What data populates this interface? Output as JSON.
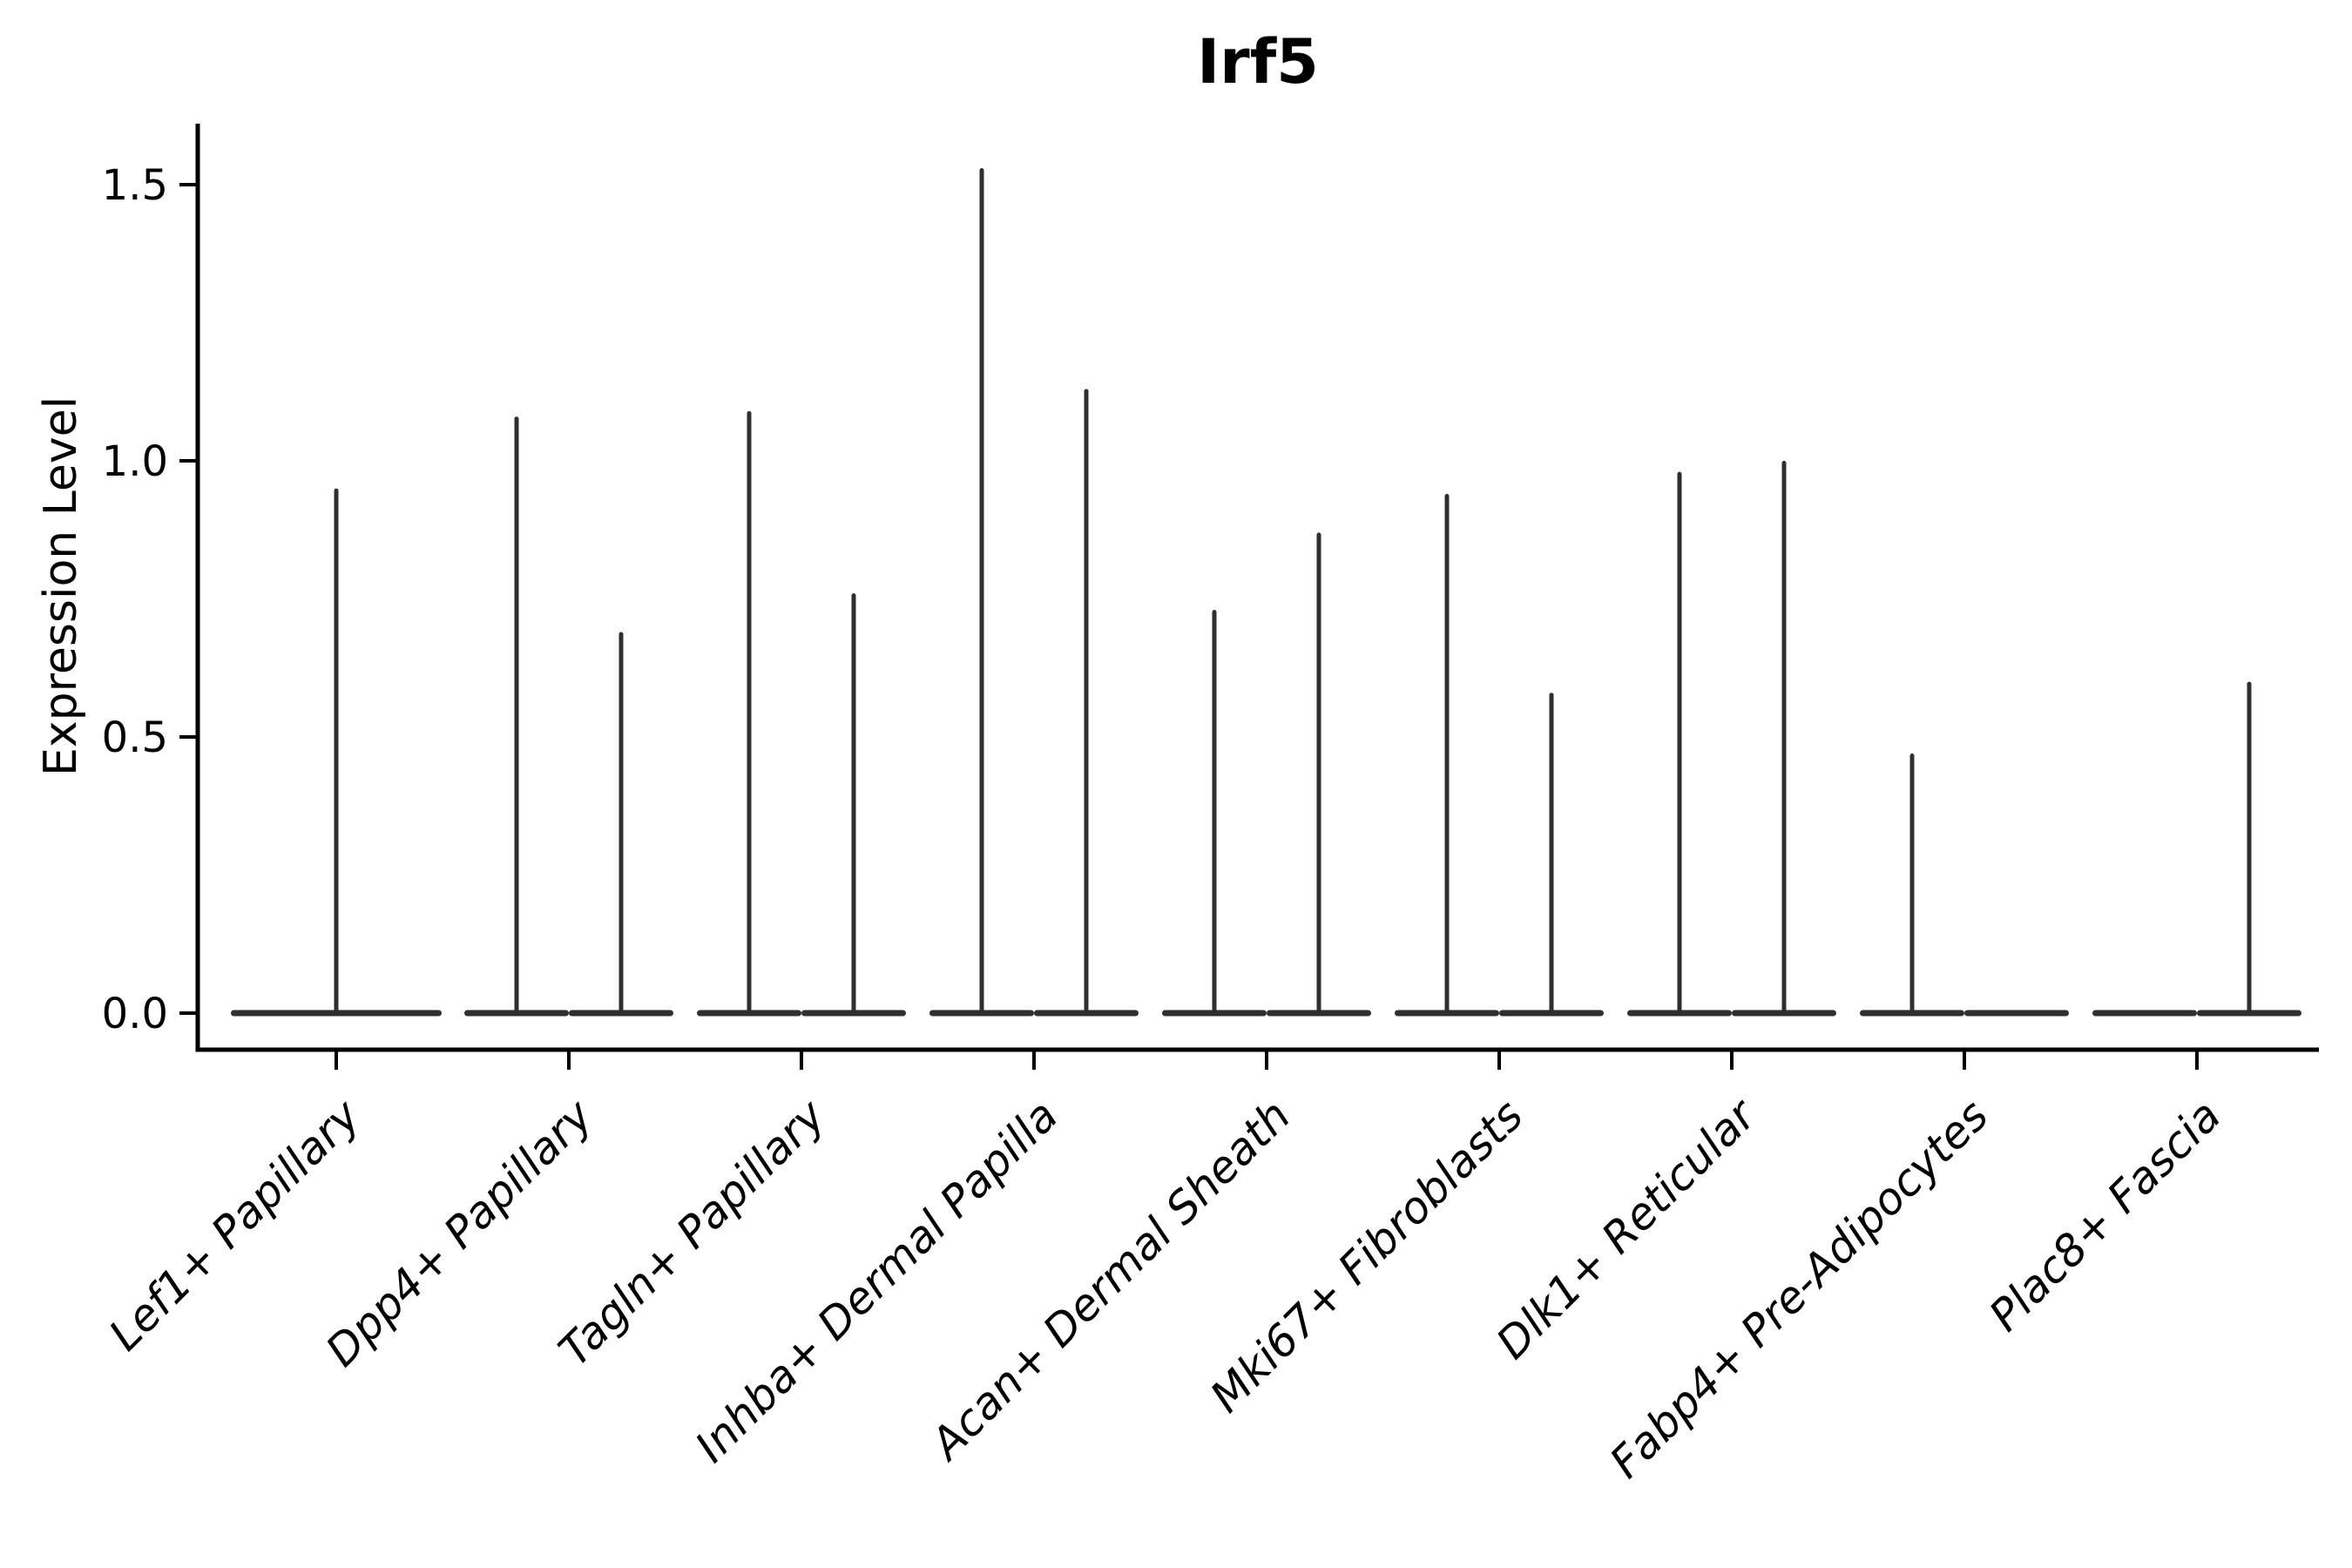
{
  "title": "Irf5",
  "ylabel": "Expression Level",
  "chart_data": {
    "type": "violin",
    "title": "Irf5",
    "xlabel": "",
    "ylabel": "Expression Level",
    "ylim": [
      0,
      1.61
    ],
    "yticks": [
      "0.0",
      "0.5",
      "1.0",
      "1.5"
    ],
    "ytick_values": [
      0.0,
      0.5,
      1.0,
      1.5
    ],
    "grid": false,
    "legend": "none",
    "violin_color": "#2f2f2f",
    "axis_color": "#000000",
    "categories": [
      {
        "label": "Lef1+ Papillary",
        "violins": [
          {
            "side": "center",
            "max": 0.95
          }
        ]
      },
      {
        "label": "Dpp4+ Papillary",
        "violins": [
          {
            "side": "left",
            "max": 1.08
          },
          {
            "side": "right",
            "max": 0.69
          }
        ]
      },
      {
        "label": "Tagln+ Papillary",
        "violins": [
          {
            "side": "left",
            "max": 1.09
          },
          {
            "side": "right",
            "max": 0.76
          }
        ]
      },
      {
        "label": "Inhba+ Dermal Papilla",
        "violins": [
          {
            "side": "left",
            "max": 1.53
          },
          {
            "side": "right",
            "max": 1.13
          }
        ]
      },
      {
        "label": "Acan+ Dermal Sheath",
        "violins": [
          {
            "side": "left",
            "max": 0.73
          },
          {
            "side": "right",
            "max": 0.87
          }
        ]
      },
      {
        "label": "Mki67+ Fibroblasts",
        "violins": [
          {
            "side": "left",
            "max": 0.94
          },
          {
            "side": "right",
            "max": 0.58
          }
        ]
      },
      {
        "label": "Dlk1+ Reticular",
        "violins": [
          {
            "side": "left",
            "max": 0.98
          },
          {
            "side": "right",
            "max": 1.0
          }
        ]
      },
      {
        "label": "Fabp4+ Pre-Adipocytes",
        "violins": [
          {
            "side": "left",
            "max": 0.47
          },
          {
            "side": "right",
            "max": 0.0
          }
        ]
      },
      {
        "label": "Plac8+ Fascia",
        "violins": [
          {
            "side": "left",
            "max": 0.0
          },
          {
            "side": "right",
            "max": 0.6
          }
        ]
      }
    ]
  }
}
